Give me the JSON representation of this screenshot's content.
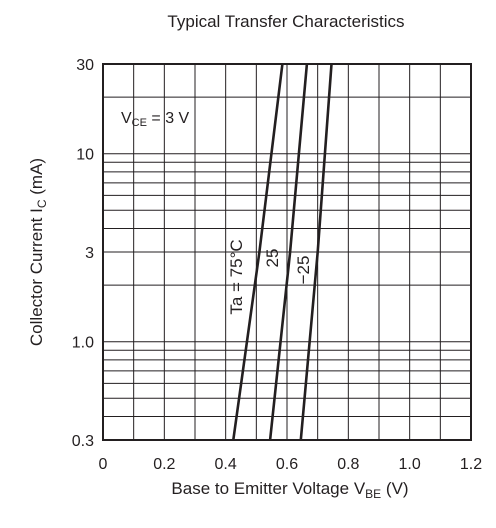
{
  "chart_data": {
    "type": "line",
    "title": "Typical Transfer Characteristics",
    "xlabel": "Base to Emitter Voltage",
    "xlabel_symbol": "V",
    "xlabel_sub": "BE",
    "xlabel_unit": "(V)",
    "ylabel": "Collector Current",
    "ylabel_symbol": "I",
    "ylabel_sub": "C",
    "ylabel_unit": "(mA)",
    "xlim": [
      0,
      1.2
    ],
    "ylim": [
      0.3,
      30
    ],
    "yscale": "log",
    "grid": true,
    "xticks": [
      {
        "value": 0,
        "label": "0"
      },
      {
        "value": 0.2,
        "label": "0.2"
      },
      {
        "value": 0.4,
        "label": "0.4"
      },
      {
        "value": 0.6,
        "label": "0.6"
      },
      {
        "value": 0.8,
        "label": "0.8"
      },
      {
        "value": 1.0,
        "label": "1.0"
      },
      {
        "value": 1.2,
        "label": "1.2"
      }
    ],
    "yticks": [
      {
        "value": 0.3,
        "label": "0.3"
      },
      {
        "value": 1.0,
        "label": "1.0"
      },
      {
        "value": 3,
        "label": "3"
      },
      {
        "value": 10,
        "label": "10"
      },
      {
        "value": 30,
        "label": "30"
      }
    ],
    "condition": {
      "symbol": "V",
      "sub": "CE",
      "text": " = 3 V"
    },
    "series": [
      {
        "name": "Ta = 75°C",
        "points": [
          [
            0.425,
            0.3
          ],
          [
            0.51,
            3
          ],
          [
            0.585,
            30
          ]
        ]
      },
      {
        "name": "25",
        "points": [
          [
            0.545,
            0.3
          ],
          [
            0.61,
            3
          ],
          [
            0.665,
            30
          ]
        ]
      },
      {
        "name": "−25",
        "points": [
          [
            0.645,
            0.3
          ],
          [
            0.7,
            3
          ],
          [
            0.745,
            30
          ]
        ]
      }
    ],
    "colors": {
      "line": "#231f20",
      "grid": "#231f20"
    }
  }
}
